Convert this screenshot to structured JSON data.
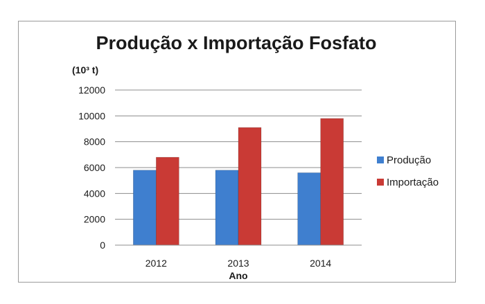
{
  "chart_data": {
    "type": "bar",
    "title": "Produção x Importação Fosfato",
    "unit_label": "(10³ t)",
    "xlabel": "Ano",
    "ylabel": "",
    "categories": [
      "2012",
      "2013",
      "2014"
    ],
    "series": [
      {
        "name": "Produção",
        "values": [
          5800,
          5800,
          5600
        ],
        "color": "#3f7fcf"
      },
      {
        "name": "Importação",
        "values": [
          6800,
          9100,
          9800
        ],
        "color": "#c93a35"
      }
    ],
    "ylim": [
      0,
      12000
    ],
    "yticks": [
      0,
      2000,
      4000,
      6000,
      8000,
      10000,
      12000
    ],
    "grid": true,
    "legend_position": "right"
  }
}
